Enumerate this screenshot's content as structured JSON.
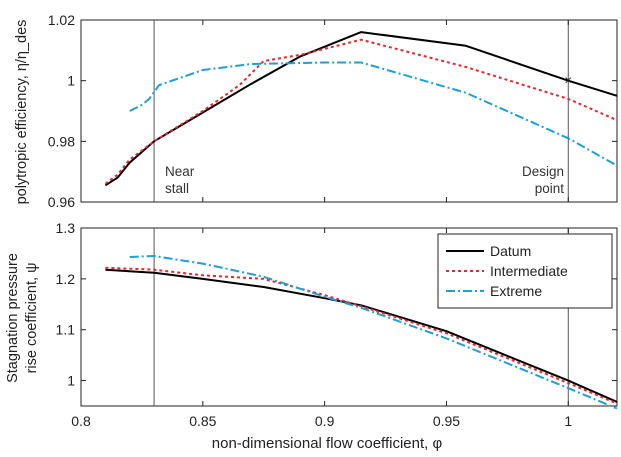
{
  "chart_data": [
    {
      "type": "line",
      "ylabel": "polytropic efficiency, η/η_des",
      "xlim": [
        0.8,
        1.02
      ],
      "ylim": [
        0.96,
        1.02
      ],
      "x_ticks": [
        "0.8",
        "0.85",
        "0.9",
        "0.95",
        "1"
      ],
      "y_ticks": [
        "0.96",
        "0.98",
        "1",
        "1.02"
      ],
      "y_tick_values": [
        0.96,
        0.98,
        1.0,
        1.02
      ],
      "grid": false,
      "vertical_lines": [
        0.83,
        1.0
      ],
      "annotations": [
        {
          "line1": "Near",
          "line2": "stall",
          "x": 0.83
        },
        {
          "line1": "Design",
          "line2": "point",
          "x": 1.0
        }
      ],
      "marker": {
        "x": 1.0,
        "y": 1.0,
        "symbol": "×"
      },
      "series": [
        {
          "name": "Datum",
          "color": "#000000",
          "dash": "solid",
          "x": [
            0.81,
            0.815,
            0.82,
            0.83,
            0.85,
            0.87,
            0.89,
            0.915,
            0.958,
            1.0,
            1.02
          ],
          "y": [
            0.9655,
            0.968,
            0.973,
            0.98,
            0.9895,
            0.999,
            1.008,
            1.016,
            1.0115,
            1.0,
            0.995
          ]
        },
        {
          "name": "Intermediate",
          "color": "#e8262b",
          "dash": "3,3",
          "x": [
            0.81,
            0.815,
            0.82,
            0.83,
            0.85,
            0.865,
            0.875,
            0.89,
            0.915,
            0.958,
            1.0,
            1.02
          ],
          "y": [
            0.966,
            0.969,
            0.974,
            0.98,
            0.99,
            0.9985,
            1.0065,
            1.0085,
            1.0135,
            1.0045,
            0.994,
            0.987
          ]
        },
        {
          "name": "Extreme",
          "color": "#1ba0d8",
          "dash": "9,3,2,3",
          "x": [
            0.82,
            0.825,
            0.828,
            0.832,
            0.85,
            0.87,
            0.9,
            0.915,
            0.958,
            1.0,
            1.02
          ],
          "y": [
            0.99,
            0.992,
            0.994,
            0.9985,
            1.0035,
            1.0055,
            1.006,
            1.006,
            0.996,
            0.981,
            0.972
          ]
        }
      ]
    },
    {
      "type": "line",
      "ylabel_line1": "Stagnation pressure",
      "ylabel_line2": "rise coefficient, ψ",
      "xlabel": "non-dimensional flow coefficient, φ",
      "xlim": [
        0.8,
        1.02
      ],
      "ylim": [
        0.95,
        1.3
      ],
      "x_ticks": [
        "0.8",
        "0.85",
        "0.9",
        "0.95",
        "1"
      ],
      "x_tick_values": [
        0.8,
        0.85,
        0.9,
        0.95,
        1.0
      ],
      "y_ticks": [
        "1",
        "1.1",
        "1.2",
        "1.3"
      ],
      "y_tick_values": [
        1.0,
        1.1,
        1.2,
        1.3
      ],
      "grid": false,
      "legend_position": "top-right",
      "vertical_lines": [
        0.83,
        1.0
      ],
      "series": [
        {
          "name": "Datum",
          "color": "#000000",
          "dash": "solid",
          "x": [
            0.81,
            0.83,
            0.85,
            0.875,
            0.9,
            0.915,
            0.95,
            1.0,
            1.02
          ],
          "y": [
            1.218,
            1.212,
            1.2,
            1.184,
            1.162,
            1.148,
            1.097,
            1.0,
            0.958
          ]
        },
        {
          "name": "Intermediate",
          "color": "#e8262b",
          "dash": "3,3",
          "x": [
            0.81,
            0.83,
            0.85,
            0.875,
            0.9,
            0.915,
            0.95,
            1.0,
            1.02
          ],
          "y": [
            1.222,
            1.218,
            1.207,
            1.2,
            1.168,
            1.146,
            1.093,
            0.995,
            0.955
          ]
        },
        {
          "name": "Extreme",
          "color": "#1ba0d8",
          "dash": "9,3,2,3",
          "x": [
            0.82,
            0.83,
            0.85,
            0.875,
            0.9,
            0.915,
            0.95,
            1.0,
            1.02
          ],
          "y": [
            1.243,
            1.245,
            1.23,
            1.204,
            1.165,
            1.143,
            1.083,
            0.985,
            0.945
          ]
        }
      ]
    }
  ]
}
